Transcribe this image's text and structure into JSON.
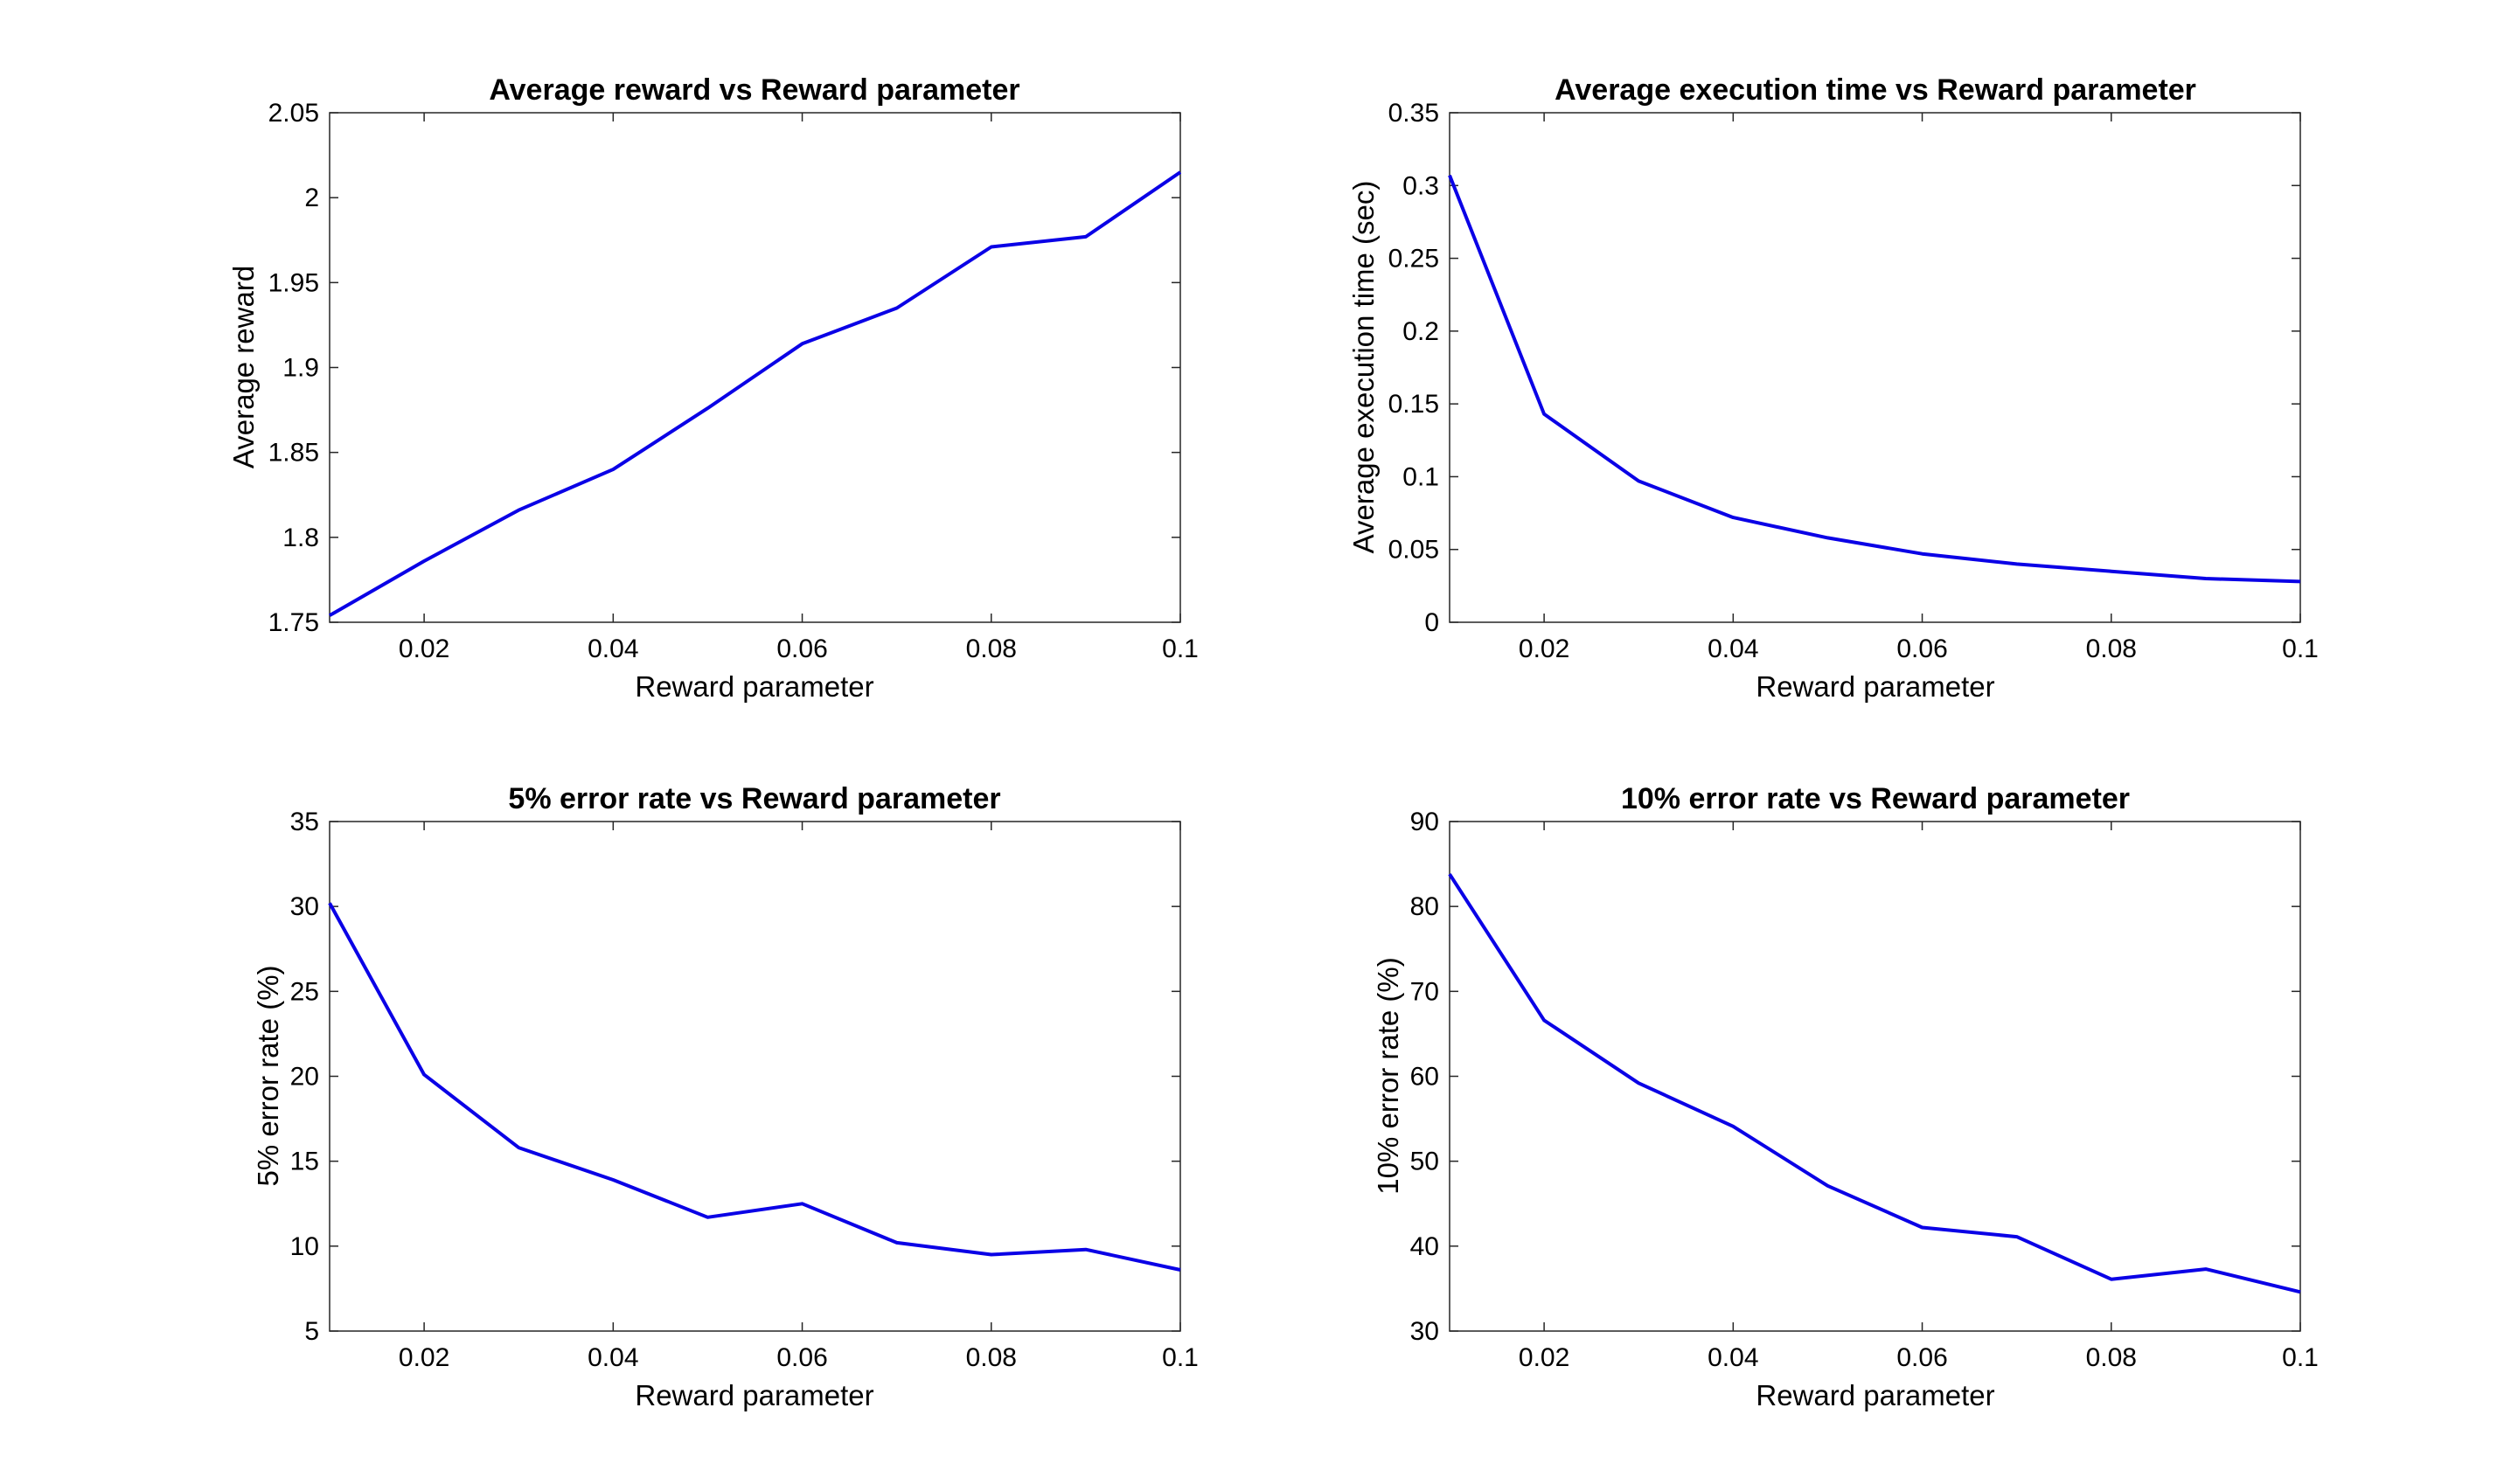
{
  "figure": {
    "line_color": "#0a00e6",
    "axis_color": "#262626",
    "background": "#ffffff"
  },
  "chart_data": [
    {
      "type": "line",
      "title": "Average reward vs Reward parameter",
      "xlabel": "Reward parameter",
      "ylabel": "Average reward",
      "xlim": [
        0.01,
        0.1
      ],
      "ylim": [
        1.75,
        2.05
      ],
      "xticks": [
        0.02,
        0.04,
        0.06,
        0.08,
        0.1
      ],
      "xtick_labels": [
        "0.02",
        "0.04",
        "0.06",
        "0.08",
        "0.1"
      ],
      "yticks": [
        1.75,
        1.8,
        1.85,
        1.9,
        1.95,
        2,
        2.05
      ],
      "ytick_labels": [
        "1.75",
        "1.8",
        "1.85",
        "1.9",
        "1.95",
        "2",
        "2.05"
      ],
      "grid": false,
      "series": [
        {
          "x": [
            0.01,
            0.02,
            0.03,
            0.04,
            0.05,
            0.06,
            0.07,
            0.08,
            0.09,
            0.1
          ],
          "values": [
            1.754,
            1.786,
            1.816,
            1.84,
            1.876,
            1.914,
            1.935,
            1.971,
            1.977,
            2.015
          ]
        }
      ]
    },
    {
      "type": "line",
      "title": "Average execution time vs Reward parameter",
      "xlabel": "Reward parameter",
      "ylabel": "Average execution time (sec)",
      "xlim": [
        0.01,
        0.1
      ],
      "ylim": [
        0,
        0.35
      ],
      "xticks": [
        0.02,
        0.04,
        0.06,
        0.08,
        0.1
      ],
      "xtick_labels": [
        "0.02",
        "0.04",
        "0.06",
        "0.08",
        "0.1"
      ],
      "yticks": [
        0,
        0.05,
        0.1,
        0.15,
        0.2,
        0.25,
        0.3,
        0.35
      ],
      "ytick_labels": [
        "0",
        "0.05",
        "0.1",
        "0.15",
        "0.2",
        "0.25",
        "0.3",
        "0.35"
      ],
      "grid": false,
      "series": [
        {
          "x": [
            0.01,
            0.02,
            0.03,
            0.04,
            0.05,
            0.06,
            0.07,
            0.08,
            0.09,
            0.1
          ],
          "values": [
            0.307,
            0.143,
            0.097,
            0.072,
            0.058,
            0.047,
            0.04,
            0.035,
            0.03,
            0.028
          ]
        }
      ]
    },
    {
      "type": "line",
      "title": "5% error rate vs Reward parameter",
      "xlabel": "Reward parameter",
      "ylabel": "5% error rate (%)",
      "xlim": [
        0.01,
        0.1
      ],
      "ylim": [
        5,
        35
      ],
      "xticks": [
        0.02,
        0.04,
        0.06,
        0.08,
        0.1
      ],
      "xtick_labels": [
        "0.02",
        "0.04",
        "0.06",
        "0.08",
        "0.1"
      ],
      "yticks": [
        5,
        10,
        15,
        20,
        25,
        30,
        35
      ],
      "ytick_labels": [
        "5",
        "10",
        "15",
        "20",
        "25",
        "30",
        "35"
      ],
      "grid": false,
      "series": [
        {
          "x": [
            0.01,
            0.02,
            0.03,
            0.04,
            0.05,
            0.06,
            0.07,
            0.08,
            0.09,
            0.1
          ],
          "values": [
            30.2,
            20.1,
            15.8,
            13.9,
            11.7,
            12.5,
            10.2,
            9.5,
            9.8,
            8.6
          ]
        }
      ]
    },
    {
      "type": "line",
      "title": "10% error rate vs Reward parameter",
      "xlabel": "Reward parameter",
      "ylabel": "10% error rate (%)",
      "xlim": [
        0.01,
        0.1
      ],
      "ylim": [
        30,
        90
      ],
      "xticks": [
        0.02,
        0.04,
        0.06,
        0.08,
        0.1
      ],
      "xtick_labels": [
        "0.02",
        "0.04",
        "0.06",
        "0.08",
        "0.1"
      ],
      "yticks": [
        30,
        40,
        50,
        60,
        70,
        80,
        90
      ],
      "ytick_labels": [
        "30",
        "40",
        "50",
        "60",
        "70",
        "80",
        "90"
      ],
      "grid": false,
      "series": [
        {
          "x": [
            0.01,
            0.02,
            0.03,
            0.04,
            0.05,
            0.06,
            0.07,
            0.08,
            0.09,
            0.1
          ],
          "values": [
            83.8,
            66.6,
            59.2,
            54.1,
            47.1,
            42.2,
            41.1,
            36.1,
            37.3,
            34.6
          ]
        }
      ]
    }
  ]
}
